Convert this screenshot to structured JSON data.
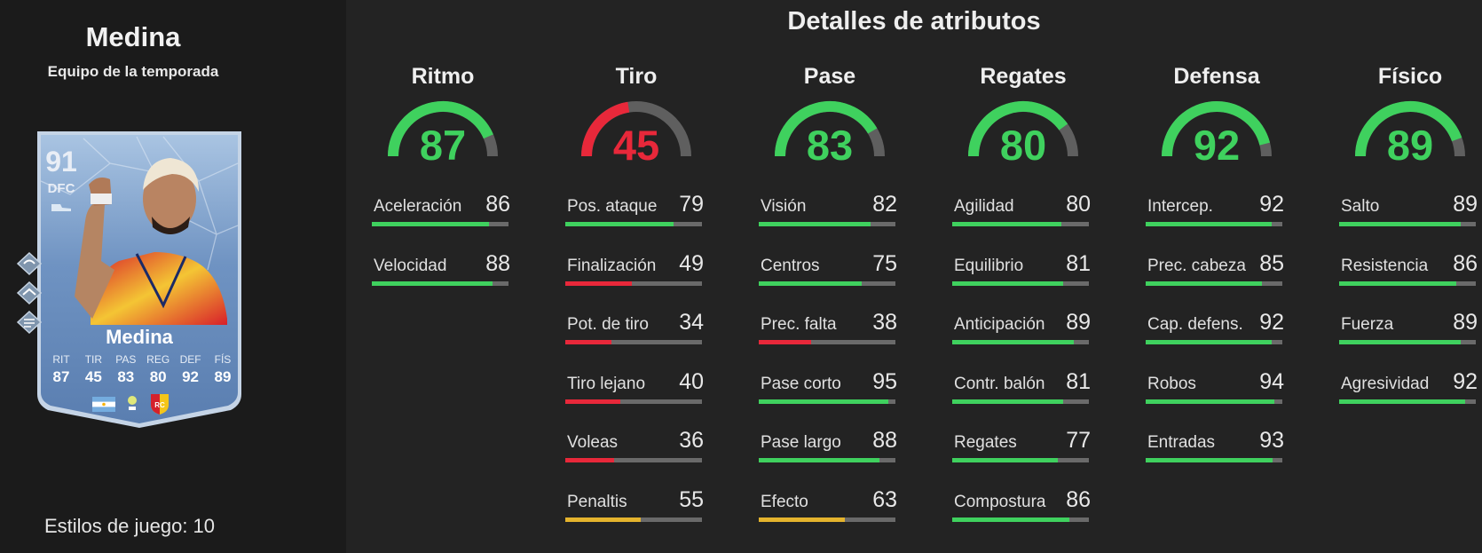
{
  "player": {
    "name": "Medina",
    "subtitle": "Equipo de la temporada",
    "playstyles": "Estilos de juego: 10"
  },
  "card": {
    "rating": "91",
    "position": "DFC",
    "name": "Medina",
    "stats": [
      {
        "label": "RIT",
        "value": "87"
      },
      {
        "label": "TIR",
        "value": "45"
      },
      {
        "label": "PAS",
        "value": "83"
      },
      {
        "label": "REG",
        "value": "80"
      },
      {
        "label": "DEF",
        "value": "92"
      },
      {
        "label": "FÍS",
        "value": "89"
      }
    ],
    "icons": [
      "boot-icon",
      "playstyle-1-icon",
      "playstyle-2-icon",
      "playstyle-3-icon",
      "argentina-flag-icon",
      "ligue1-logo-icon",
      "rc-lens-crest-icon"
    ]
  },
  "details_title": "Detalles de atributos",
  "colors": {
    "green": "#3fd15e",
    "red": "#e8283a",
    "yellow": "#e4b32d",
    "track": "#6a6a6a"
  },
  "categories": [
    {
      "title": "Ritmo",
      "value": "87",
      "level": "green",
      "attributes": [
        {
          "label": "Aceleración",
          "value": "86",
          "level": "green"
        },
        {
          "label": "Velocidad",
          "value": "88",
          "level": "green"
        }
      ]
    },
    {
      "title": "Tiro",
      "value": "45",
      "level": "red",
      "attributes": [
        {
          "label": "Pos. ataque",
          "value": "79",
          "level": "green"
        },
        {
          "label": "Finalización",
          "value": "49",
          "level": "red"
        },
        {
          "label": "Pot. de tiro",
          "value": "34",
          "level": "red"
        },
        {
          "label": "Tiro lejano",
          "value": "40",
          "level": "red"
        },
        {
          "label": "Voleas",
          "value": "36",
          "level": "red"
        },
        {
          "label": "Penaltis",
          "value": "55",
          "level": "yellow"
        }
      ]
    },
    {
      "title": "Pase",
      "value": "83",
      "level": "green",
      "attributes": [
        {
          "label": "Visión",
          "value": "82",
          "level": "green"
        },
        {
          "label": "Centros",
          "value": "75",
          "level": "green"
        },
        {
          "label": "Prec. falta",
          "value": "38",
          "level": "red"
        },
        {
          "label": "Pase corto",
          "value": "95",
          "level": "green"
        },
        {
          "label": "Pase largo",
          "value": "88",
          "level": "green"
        },
        {
          "label": "Efecto",
          "value": "63",
          "level": "yellow"
        }
      ]
    },
    {
      "title": "Regates",
      "value": "80",
      "level": "green",
      "attributes": [
        {
          "label": "Agilidad",
          "value": "80",
          "level": "green"
        },
        {
          "label": "Equilibrio",
          "value": "81",
          "level": "green"
        },
        {
          "label": "Anticipación",
          "value": "89",
          "level": "green"
        },
        {
          "label": "Contr. balón",
          "value": "81",
          "level": "green"
        },
        {
          "label": "Regates",
          "value": "77",
          "level": "green"
        },
        {
          "label": "Compostura",
          "value": "86",
          "level": "green"
        }
      ]
    },
    {
      "title": "Defensa",
      "value": "92",
      "level": "green",
      "attributes": [
        {
          "label": "Intercep.",
          "value": "92",
          "level": "green"
        },
        {
          "label": "Prec. cabeza",
          "value": "85",
          "level": "green"
        },
        {
          "label": "Cap. defens.",
          "value": "92",
          "level": "green"
        },
        {
          "label": "Robos",
          "value": "94",
          "level": "green"
        },
        {
          "label": "Entradas",
          "value": "93",
          "level": "green"
        }
      ]
    },
    {
      "title": "Físico",
      "value": "89",
      "level": "green",
      "attributes": [
        {
          "label": "Salto",
          "value": "89",
          "level": "green"
        },
        {
          "label": "Resistencia",
          "value": "86",
          "level": "green"
        },
        {
          "label": "Fuerza",
          "value": "89",
          "level": "green"
        },
        {
          "label": "Agresividad",
          "value": "92",
          "level": "green"
        }
      ]
    }
  ]
}
